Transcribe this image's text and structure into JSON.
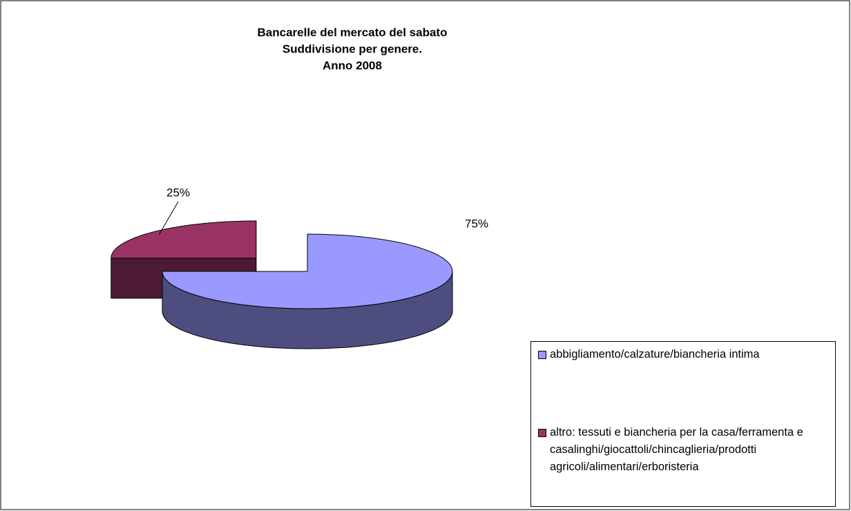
{
  "chart_data": {
    "type": "pie3d",
    "title": [
      "Bancarelle del mercato del sabato",
      "Suddivisione per genere.",
      "Anno 2008"
    ],
    "categories": [
      "abbigliamento/calzature/biancheria intima",
      "altro: tessuti e biancheria per la casa/ferramenta e casalinghi/giocattoli/chincaglieria/prodotti agricoli/alimentari/erboristeria"
    ],
    "values": [
      75,
      25
    ],
    "value_labels": [
      "75%",
      "25%"
    ],
    "colors": [
      "#9999ff",
      "#993366"
    ],
    "legend": "right"
  }
}
